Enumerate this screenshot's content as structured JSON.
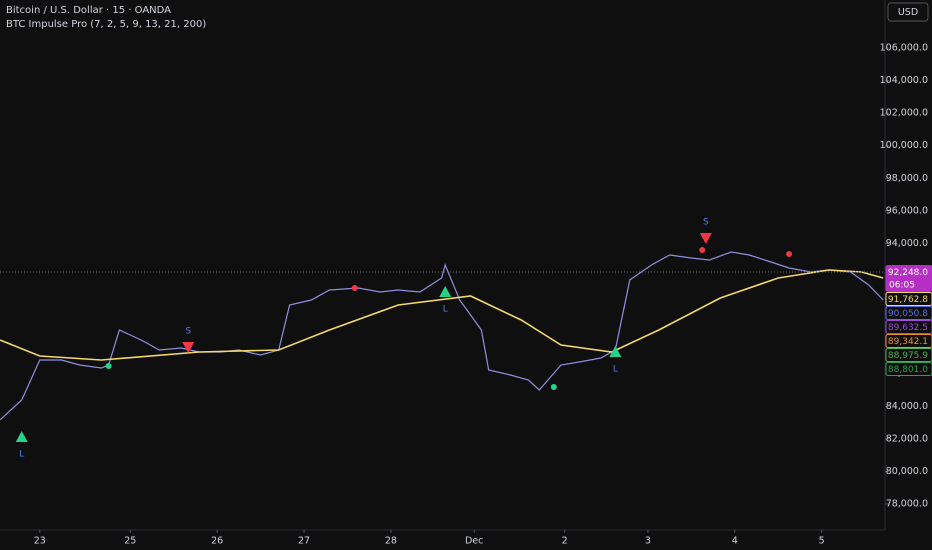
{
  "header": {
    "symbol": "Bitcoin / U.S. Dollar · 15 · OANDA",
    "indicator": "BTC Impulse Pro (7, 2, 5, 9, 13, 21, 200)",
    "currency": "USD",
    "countdown": "06:05"
  },
  "chart_data": {
    "type": "line",
    "xlim": [
      0,
      244.5
    ],
    "ylim": [
      76400,
      108950
    ],
    "xticks": [
      {
        "value": 11,
        "label": "23"
      },
      {
        "value": 36,
        "label": "25"
      },
      {
        "value": 60,
        "label": "26"
      },
      {
        "value": 84,
        "label": "27"
      },
      {
        "value": 108,
        "label": "28"
      },
      {
        "value": 131,
        "label": "Dec"
      },
      {
        "value": 156,
        "label": "2"
      },
      {
        "value": 179,
        "label": "3"
      },
      {
        "value": 203,
        "label": "4"
      },
      {
        "value": 227,
        "label": "5"
      }
    ],
    "yticks": [
      {
        "value": 78000,
        "label": "78,000.0"
      },
      {
        "value": 80000,
        "label": "80,000.0"
      },
      {
        "value": 82000,
        "label": "82,000.0"
      },
      {
        "value": 84000,
        "label": "84,000.0"
      },
      {
        "value": 86000,
        "label": "86,000.0"
      },
      {
        "value": 88000,
        "label": "88,000.0"
      },
      {
        "value": 90000,
        "label": "90,000.0"
      },
      {
        "value": 92000,
        "label": "92,000.0"
      },
      {
        "value": 94000,
        "label": "94,000.0"
      },
      {
        "value": 96000,
        "label": "96,000.0"
      },
      {
        "value": 98000,
        "label": "98,000.0"
      },
      {
        "value": 100000,
        "label": "100,000.0"
      },
      {
        "value": 102000,
        "label": "102,000.0"
      },
      {
        "value": 104000,
        "label": "104,000.0"
      },
      {
        "value": 106000,
        "label": "106,000.0"
      }
    ],
    "series": [
      {
        "color": "#8f8fe0",
        "x": [
          0,
          6,
          11,
          17,
          22,
          28,
          30,
          33,
          39,
          44,
          50,
          55,
          61,
          66,
          72,
          77,
          80,
          86,
          91,
          99,
          105,
          110,
          116,
          122,
          123,
          127,
          133,
          135,
          141,
          146,
          149,
          155,
          160,
          166,
          170,
          174,
          180,
          185,
          191,
          196,
          202,
          207,
          213,
          218,
          224,
          229,
          235,
          240,
          244
        ],
        "values": [
          83159,
          84387,
          86843,
          86843,
          86536,
          86352,
          86536,
          88685,
          88071,
          87457,
          87580,
          87334,
          87334,
          87457,
          87150,
          87457,
          90220,
          90527,
          91141,
          91264,
          91018,
          91141,
          91018,
          91878,
          92676,
          90527,
          88685,
          86229,
          85922,
          85615,
          85001,
          86536,
          86720,
          86966,
          87457,
          91755,
          92676,
          93290,
          93106,
          92983,
          93474,
          93290,
          92860,
          92492,
          92246,
          92369,
          92246,
          91448,
          90527
        ]
      },
      {
        "color": "#f5d76e",
        "x": [
          0,
          11,
          28,
          55,
          77,
          91,
          110,
          130,
          144,
          155,
          169,
          182,
          199,
          215,
          229,
          238,
          244
        ],
        "values": [
          88071,
          87089,
          86843,
          87334,
          87457,
          88685,
          90220,
          90773,
          89299,
          87764,
          87334,
          88685,
          90650,
          91878,
          92369,
          92246,
          91878
        ]
      }
    ],
    "signals": [
      {
        "label": "S",
        "x": 52,
        "y": 87641,
        "color": "#f23645"
      },
      {
        "label": "S",
        "x": 195,
        "y": 94333,
        "color": "#f23645"
      },
      {
        "label": "L",
        "x": 6,
        "y": 82114,
        "color": "#22d48a"
      },
      {
        "label": "L",
        "x": 123,
        "y": 91018,
        "color": "#22d48a"
      },
      {
        "label": "L",
        "x": 170,
        "y": 87334,
        "color": "#22d48a"
      }
    ],
    "dots": [
      {
        "x": 98,
        "y": 91264,
        "color": "#f23645"
      },
      {
        "x": 194,
        "y": 93597,
        "color": "#f23645"
      },
      {
        "x": 218,
        "y": 93351,
        "color": "#f23645"
      },
      {
        "x": 153,
        "y": 85185,
        "color": "#22d48a"
      },
      {
        "x": 30,
        "y": 86475,
        "color": "#22d48a"
      }
    ],
    "price_labels": [
      {
        "value": 92248,
        "label": "92,248.0",
        "color": "#b62fc4"
      },
      {
        "value": 91762.8,
        "label": "91,762.8",
        "color": "#f5d76e"
      },
      {
        "value": 90050.8,
        "label": "90,050.8",
        "color": "#5b6ee1"
      },
      {
        "value": 89632.5,
        "label": "89,632.5",
        "color": "#9c4ad9"
      },
      {
        "value": 89342.1,
        "label": "89,342.1",
        "color": "#f28c38"
      },
      {
        "value": 88975.9,
        "label": "88,975.9",
        "color": "#4caf50"
      },
      {
        "value": 88801,
        "label": "88,801.0",
        "color": "#2e9e4f"
      }
    ]
  }
}
